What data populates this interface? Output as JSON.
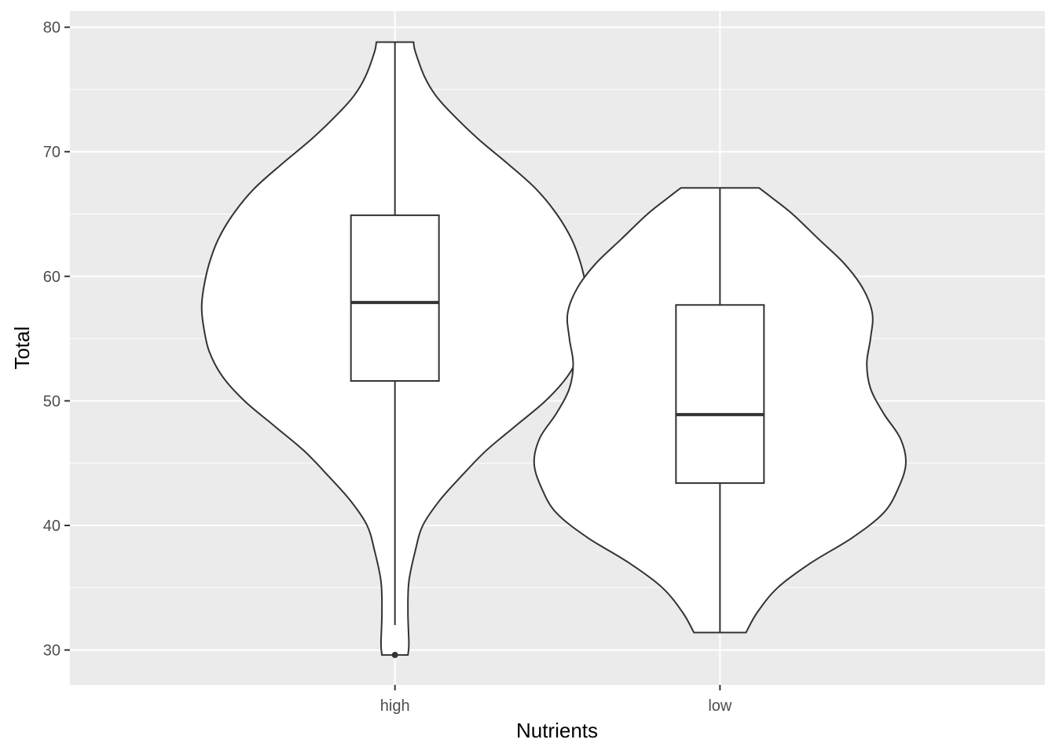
{
  "chart_data": {
    "type": "violin",
    "title": "",
    "xlabel": "Nutrients",
    "ylabel": "Total",
    "categories": [
      "high",
      "low"
    ],
    "ylim": [
      27.2,
      81.3
    ],
    "yticks": [
      30,
      40,
      50,
      60,
      70,
      80
    ],
    "grid": true,
    "colors": {
      "panel_background": "#ebebeb",
      "grid": "#ffffff",
      "violin_fill": "#ffffff",
      "outline": "#333333"
    },
    "violins": [
      {
        "category": "high",
        "min": 29.6,
        "max": 78.8,
        "density_profile": [
          [
            29.6,
            0.07
          ],
          [
            30.5,
            0.075
          ],
          [
            33,
            0.07
          ],
          [
            35.5,
            0.075
          ],
          [
            38,
            0.11
          ],
          [
            40,
            0.15
          ],
          [
            42,
            0.24
          ],
          [
            44,
            0.36
          ],
          [
            46,
            0.49
          ],
          [
            48,
            0.65
          ],
          [
            50,
            0.81
          ],
          [
            52,
            0.93
          ],
          [
            54,
            1.0
          ],
          [
            56,
            1.03
          ],
          [
            57.5,
            1.04
          ],
          [
            59,
            1.03
          ],
          [
            61,
            1.0
          ],
          [
            63,
            0.95
          ],
          [
            65,
            0.87
          ],
          [
            67,
            0.76
          ],
          [
            69,
            0.61
          ],
          [
            71,
            0.45
          ],
          [
            73,
            0.31
          ],
          [
            74.5,
            0.22
          ],
          [
            76,
            0.16
          ],
          [
            78,
            0.11
          ],
          [
            78.8,
            0.1
          ]
        ],
        "box": {
          "whisker_low": 32.0,
          "q1": 51.6,
          "median": 57.9,
          "q3": 64.9,
          "whisker_high": 78.8
        },
        "outliers": [
          29.6
        ]
      },
      {
        "category": "low",
        "min": 31.4,
        "max": 67.1,
        "density_profile": [
          [
            31.4,
            0.14
          ],
          [
            33,
            0.2
          ],
          [
            35,
            0.31
          ],
          [
            37,
            0.49
          ],
          [
            39,
            0.71
          ],
          [
            41,
            0.88
          ],
          [
            43,
            0.96
          ],
          [
            45,
            1.0
          ],
          [
            47,
            0.97
          ],
          [
            49,
            0.88
          ],
          [
            51,
            0.81
          ],
          [
            53,
            0.79
          ],
          [
            55,
            0.81
          ],
          [
            57,
            0.82
          ],
          [
            59,
            0.77
          ],
          [
            61,
            0.67
          ],
          [
            63,
            0.53
          ],
          [
            65,
            0.39
          ],
          [
            66.3,
            0.28
          ],
          [
            67.1,
            0.21
          ]
        ],
        "box": {
          "whisker_low": 31.4,
          "q1": 43.4,
          "median": 48.9,
          "q3": 57.7,
          "whisker_high": 67.1
        },
        "outliers": []
      }
    ]
  }
}
